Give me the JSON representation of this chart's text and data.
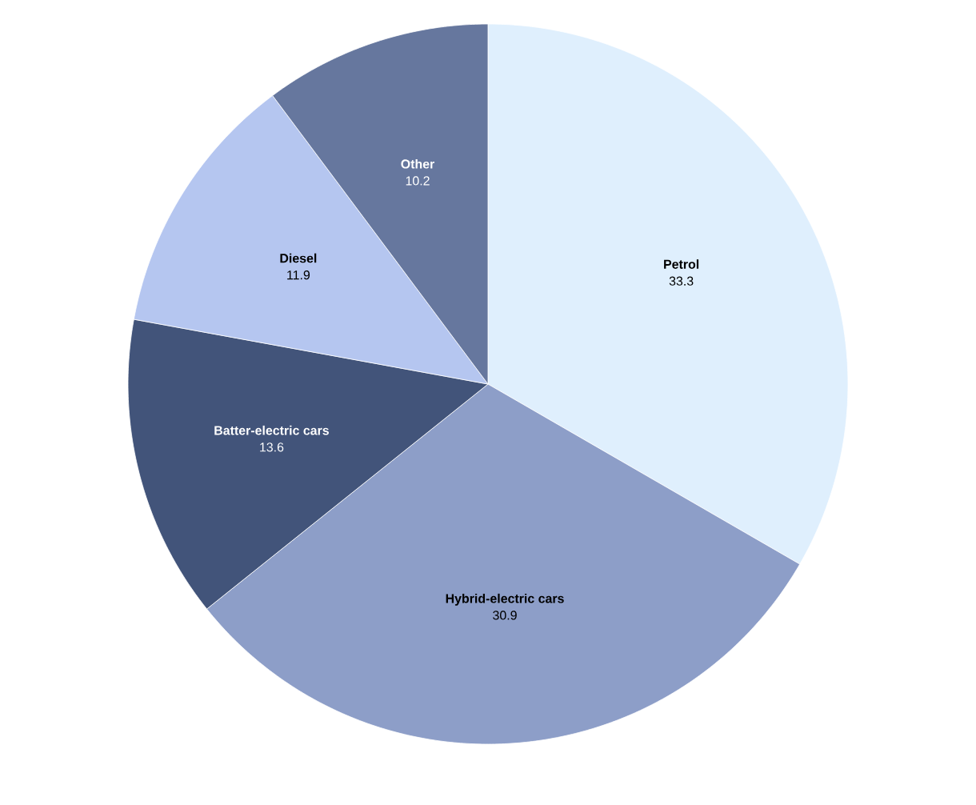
{
  "chart_data": {
    "type": "pie",
    "categories": [
      "Petrol",
      "Hybrid-electric cars",
      "Batter-electric cars",
      "Diesel",
      "Other"
    ],
    "values": [
      33.3,
      30.9,
      13.6,
      11.9,
      10.2
    ],
    "colors": [
      "#dfeffd",
      "#8d9ec8",
      "#42547a",
      "#b5c6f0",
      "#66779e"
    ],
    "data_labels": true
  }
}
